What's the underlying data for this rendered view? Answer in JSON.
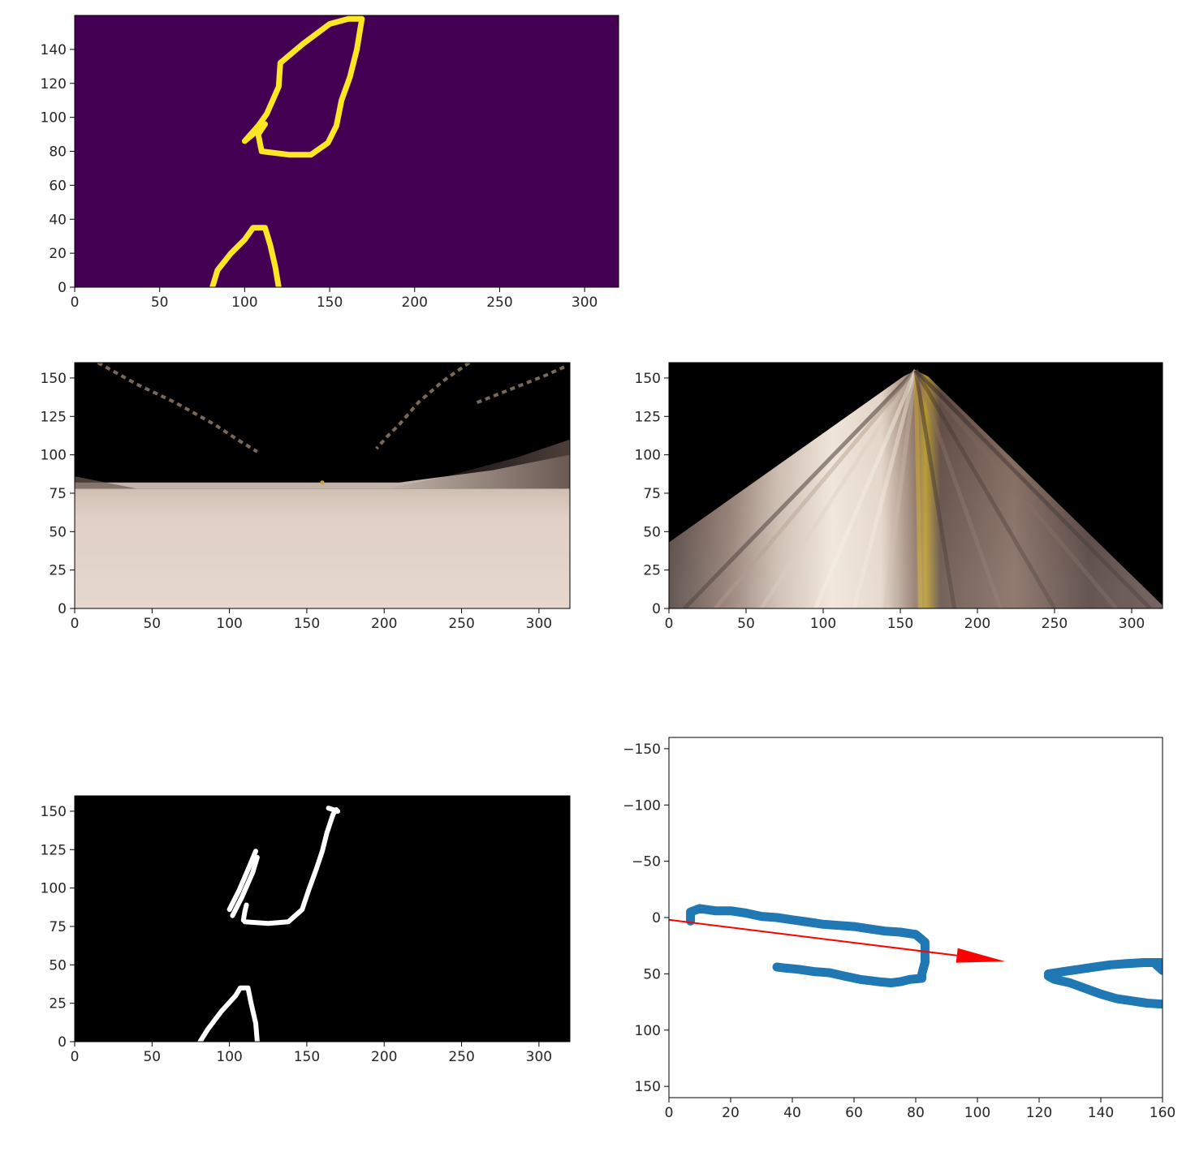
{
  "chart_data": [
    {
      "id": "edge-contour-viridis",
      "type": "heatmap",
      "title": "",
      "xlabel": "",
      "ylabel": "",
      "xlim": [
        0,
        320
      ],
      "ylim": [
        160,
        0
      ],
      "xticks": [
        0,
        50,
        100,
        150,
        200,
        250,
        300
      ],
      "yticks": [
        0,
        20,
        40,
        60,
        80,
        100,
        120,
        140
      ],
      "colors": {
        "background": "#440154",
        "line": "#fde725"
      },
      "contours": [
        [
          [
            81,
            0
          ],
          [
            84,
            10
          ],
          [
            92,
            20
          ],
          [
            100,
            28
          ],
          [
            105,
            35
          ],
          [
            112,
            35
          ],
          [
            115,
            25
          ],
          [
            118,
            12
          ],
          [
            120,
            0
          ]
        ],
        [
          [
            100,
            86
          ],
          [
            108,
            95
          ],
          [
            113,
            102
          ],
          [
            120,
            118
          ],
          [
            121,
            132
          ],
          [
            134,
            143
          ],
          [
            150,
            155
          ],
          [
            161,
            158
          ],
          [
            169,
            158
          ],
          [
            166,
            140
          ],
          [
            162,
            124
          ],
          [
            157,
            110
          ],
          [
            154,
            95
          ],
          [
            149,
            85
          ],
          [
            139,
            78
          ],
          [
            126,
            78
          ],
          [
            110,
            80
          ],
          [
            108,
            90
          ],
          [
            112,
            96
          ],
          [
            100,
            86
          ]
        ]
      ]
    },
    {
      "id": "camera-image",
      "type": "heatmap",
      "title": "",
      "xlabel": "",
      "ylabel": "",
      "xlim": [
        0,
        320
      ],
      "ylim": [
        160,
        0
      ],
      "horizon_y": 78,
      "xticks": [
        0,
        50,
        100,
        150,
        200,
        250,
        300
      ],
      "yticks": [
        0,
        25,
        50,
        75,
        100,
        125,
        150
      ],
      "colors": {
        "sky": "#000000",
        "ground": "#e2d2c7",
        "ground_far": "#d8c8bc",
        "rock": "#7e6a5e",
        "track": "#8f7a68"
      }
    },
    {
      "id": "perspective-warp",
      "type": "heatmap",
      "title": "",
      "xlabel": "",
      "ylabel": "",
      "xlim": [
        0,
        320
      ],
      "ylim": [
        160,
        0
      ],
      "xticks": [
        0,
        50,
        100,
        150,
        200,
        250,
        300
      ],
      "yticks": [
        0,
        25,
        50,
        75,
        100,
        125,
        150
      ],
      "warp_polygon": [
        [
          0,
          0
        ],
        [
          320,
          0
        ],
        [
          320,
          2
        ],
        [
          168,
          151
        ],
        [
          160,
          155
        ],
        [
          152,
          151
        ],
        [
          0,
          43
        ]
      ],
      "colors": {
        "background": "#000000",
        "light": "#e8dccf",
        "dark": "#3c2c28",
        "mid": "#8c7466",
        "yellow": "#b89a2a"
      }
    },
    {
      "id": "binary-threshold",
      "type": "heatmap",
      "title": "",
      "xlabel": "",
      "ylabel": "",
      "xlim": [
        0,
        320
      ],
      "ylim": [
        160,
        0
      ],
      "xticks": [
        0,
        50,
        100,
        150,
        200,
        250,
        300
      ],
      "yticks": [
        0,
        25,
        50,
        75,
        100,
        125,
        150
      ],
      "colors": {
        "background": "#000000",
        "line": "#ffffff"
      },
      "contours": [
        [
          [
            81,
            0
          ],
          [
            86,
            8
          ],
          [
            95,
            20
          ],
          [
            104,
            30
          ],
          [
            107,
            35
          ],
          [
            112,
            35
          ],
          [
            114,
            25
          ],
          [
            117,
            12
          ],
          [
            118,
            0
          ]
        ],
        [
          [
            100,
            86
          ],
          [
            106,
            98
          ],
          [
            112,
            112
          ],
          [
            117,
            124
          ]
        ],
        [
          [
            102,
            82
          ],
          [
            108,
            94
          ],
          [
            115,
            110
          ],
          [
            118,
            120
          ]
        ],
        [
          [
            109,
            79
          ],
          [
            110,
            85
          ],
          [
            111,
            89
          ]
        ],
        [
          [
            110,
            78
          ],
          [
            125,
            77
          ],
          [
            138,
            78
          ],
          [
            147,
            86
          ],
          [
            151,
            98
          ],
          [
            156,
            112
          ],
          [
            160,
            124
          ],
          [
            163,
            136
          ],
          [
            167,
            148
          ],
          [
            169,
            151
          ]
        ],
        [
          [
            164,
            152
          ],
          [
            170,
            150
          ]
        ]
      ]
    },
    {
      "id": "rover-coords",
      "type": "scatter",
      "title": "",
      "xlabel": "",
      "ylabel": "",
      "xlim": [
        0,
        160
      ],
      "ylim": [
        -160,
        160
      ],
      "xticks": [
        0,
        20,
        40,
        60,
        80,
        100,
        120,
        140,
        160
      ],
      "yticks": [
        -150,
        -100,
        -50,
        0,
        50,
        100,
        150
      ],
      "ytick_labels": [
        "−150",
        "−100",
        "−50",
        "0",
        "50",
        "100",
        "150"
      ],
      "colors": {
        "points": "#1f77b4",
        "arrow": "#ff0000"
      },
      "series": [
        {
          "paths": [
            [
              [
                7,
                3
              ],
              [
                7,
                -5
              ],
              [
                10,
                -8
              ],
              [
                15,
                -6
              ],
              [
                20,
                -6
              ],
              [
                25,
                -4
              ],
              [
                30,
                -1
              ],
              [
                35,
                0
              ],
              [
                40,
                2
              ],
              [
                45,
                4
              ],
              [
                50,
                6
              ],
              [
                55,
                7
              ],
              [
                60,
                8
              ],
              [
                65,
                10
              ],
              [
                70,
                12
              ],
              [
                75,
                13
              ],
              [
                80,
                15
              ],
              [
                83,
                22
              ],
              [
                83,
                30
              ],
              [
                83,
                40
              ],
              [
                82,
                50
              ],
              [
                82,
                54
              ],
              [
                78,
                55
              ],
              [
                75,
                57
              ],
              [
                72,
                58
              ],
              [
                68,
                57
              ],
              [
                62,
                55
              ],
              [
                57,
                52
              ],
              [
                52,
                49
              ],
              [
                47,
                48
              ],
              [
                42,
                46
              ],
              [
                38,
                45
              ],
              [
                35,
                44
              ]
            ],
            [
              [
                123,
                52
              ],
              [
                125,
                55
              ],
              [
                130,
                58
              ],
              [
                135,
                63
              ],
              [
                140,
                68
              ],
              [
                145,
                72
              ],
              [
                150,
                74
              ],
              [
                155,
                76
              ],
              [
                160,
                77
              ]
            ],
            [
              [
                123,
                50
              ],
              [
                128,
                48
              ],
              [
                133,
                46
              ],
              [
                138,
                44
              ],
              [
                143,
                42
              ],
              [
                148,
                41
              ],
              [
                154,
                40
              ],
              [
                160,
                40
              ]
            ],
            [
              [
                158,
                42
              ],
              [
                160,
                47
              ]
            ]
          ]
        }
      ],
      "arrow": {
        "start": [
          0,
          2
        ],
        "end": [
          109,
          39
        ]
      }
    }
  ]
}
